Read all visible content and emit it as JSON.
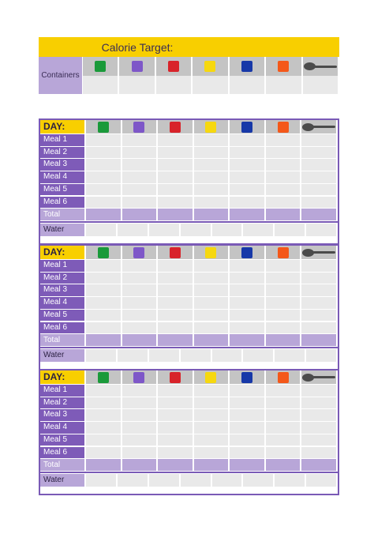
{
  "header": {
    "calorie_target_label": "Calorie Target:",
    "containers_label": "Containers"
  },
  "containers": [
    {
      "name": "green",
      "color": "#1a9a3a"
    },
    {
      "name": "purple",
      "color": "#7e57c8"
    },
    {
      "name": "red",
      "color": "#d8232a"
    },
    {
      "name": "yellow",
      "color": "#f6d80f"
    },
    {
      "name": "blue",
      "color": "#1738a8"
    },
    {
      "name": "orange",
      "color": "#f4581a"
    },
    {
      "name": "teaspoon",
      "color": "#4b4b4b"
    }
  ],
  "day_table": {
    "day_label": "DAY:",
    "meals": [
      "Meal 1",
      "Meal 2",
      "Meal 3",
      "Meal 4",
      "Meal 5",
      "Meal 6"
    ],
    "total_label": "Total",
    "water_label": "Water"
  },
  "colors": {
    "accent_yellow": "#f8cf00",
    "accent_purple": "#7e5bb8",
    "light_purple": "#b8a6d8",
    "cell_gray": "#e9e9e9",
    "header_gray": "#c4c4c4"
  }
}
